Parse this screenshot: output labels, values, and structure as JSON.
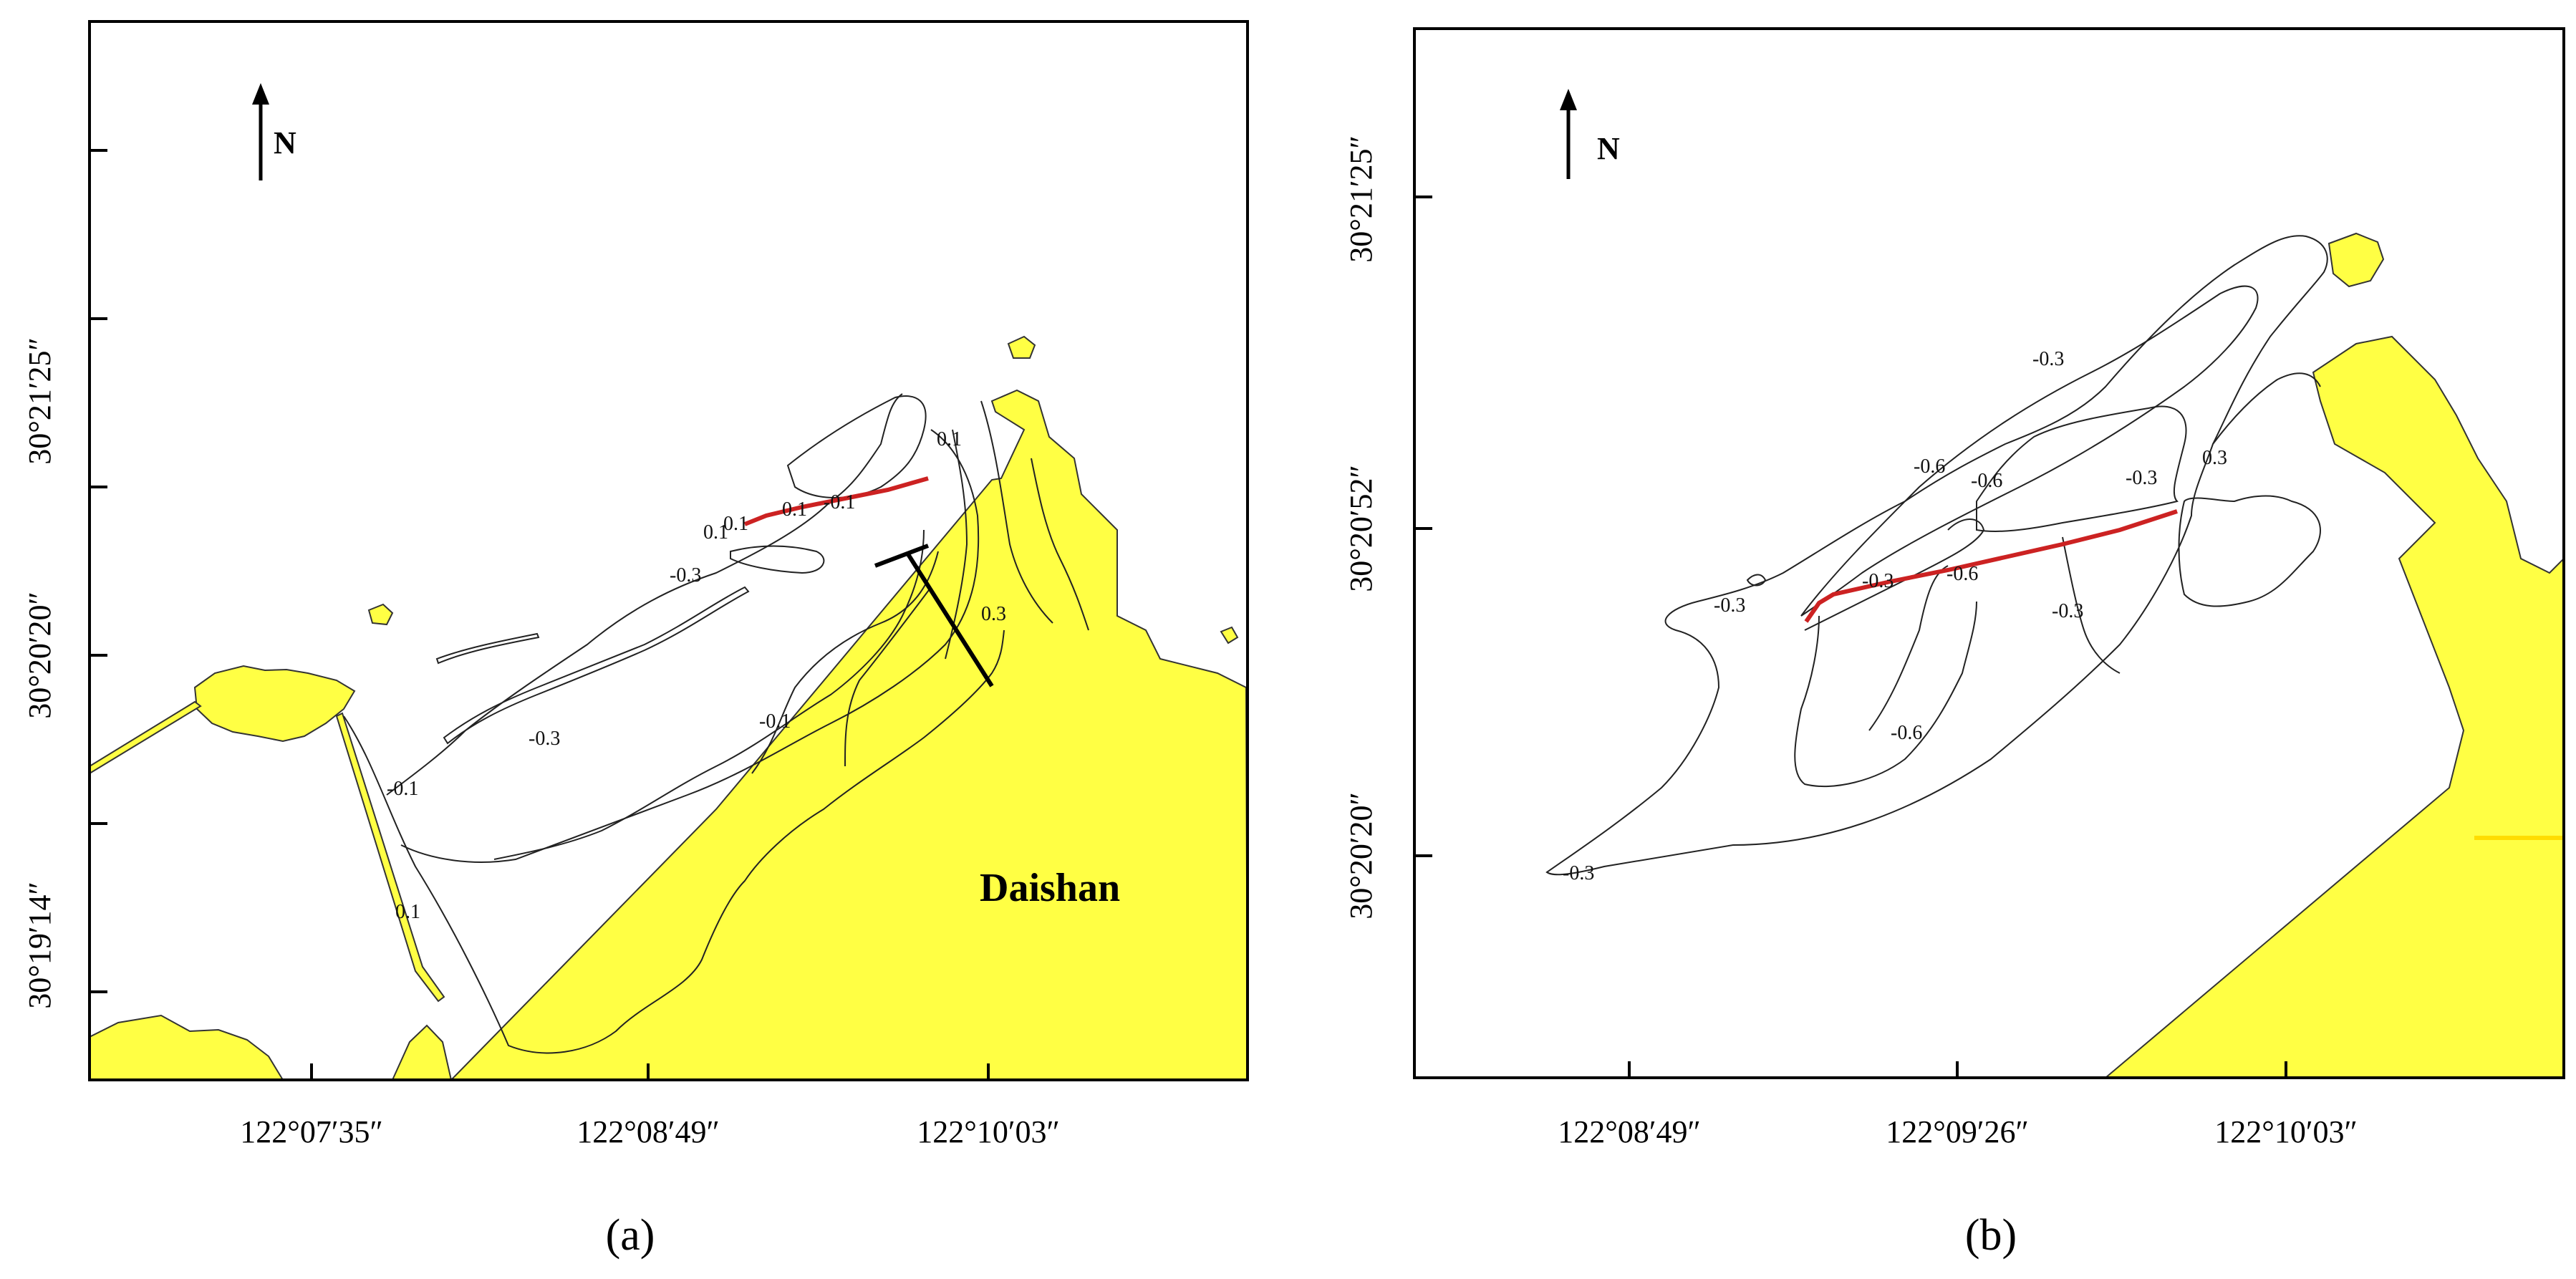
{
  "panels": [
    {
      "caption": "(a)",
      "north": "N",
      "y_ticks": [
        "30°21′25″",
        "30°20′20″",
        "30°19′14″"
      ],
      "x_ticks": [
        "122°07′35″",
        "122°08′49″",
        "122°10′03″"
      ],
      "place_label": "Daishan",
      "contour_labels": [
        "0.1",
        "-0.3",
        "0.1",
        "0.1",
        "-0.1",
        "0.1",
        "-0.3",
        "-0.1",
        "0.3",
        "-0.1",
        "0.1"
      ]
    },
    {
      "caption": "(b)",
      "north": "N",
      "y_ticks": [
        "30°21′25″",
        "30°20′52″",
        "30°20′20″"
      ],
      "x_ticks": [
        "122°08′49″",
        "122°09′26″",
        "122°10′03″"
      ],
      "contour_labels": [
        "-0.3",
        "-0.6",
        "-0.6",
        "-0.3",
        "0.3",
        "-0.3",
        "-0.3",
        "-0.6",
        "-0.3",
        "-0.6",
        "-0.3"
      ]
    }
  ],
  "colors": {
    "land": "#ffff44",
    "line": "#cc2222",
    "frame": "#000000"
  }
}
